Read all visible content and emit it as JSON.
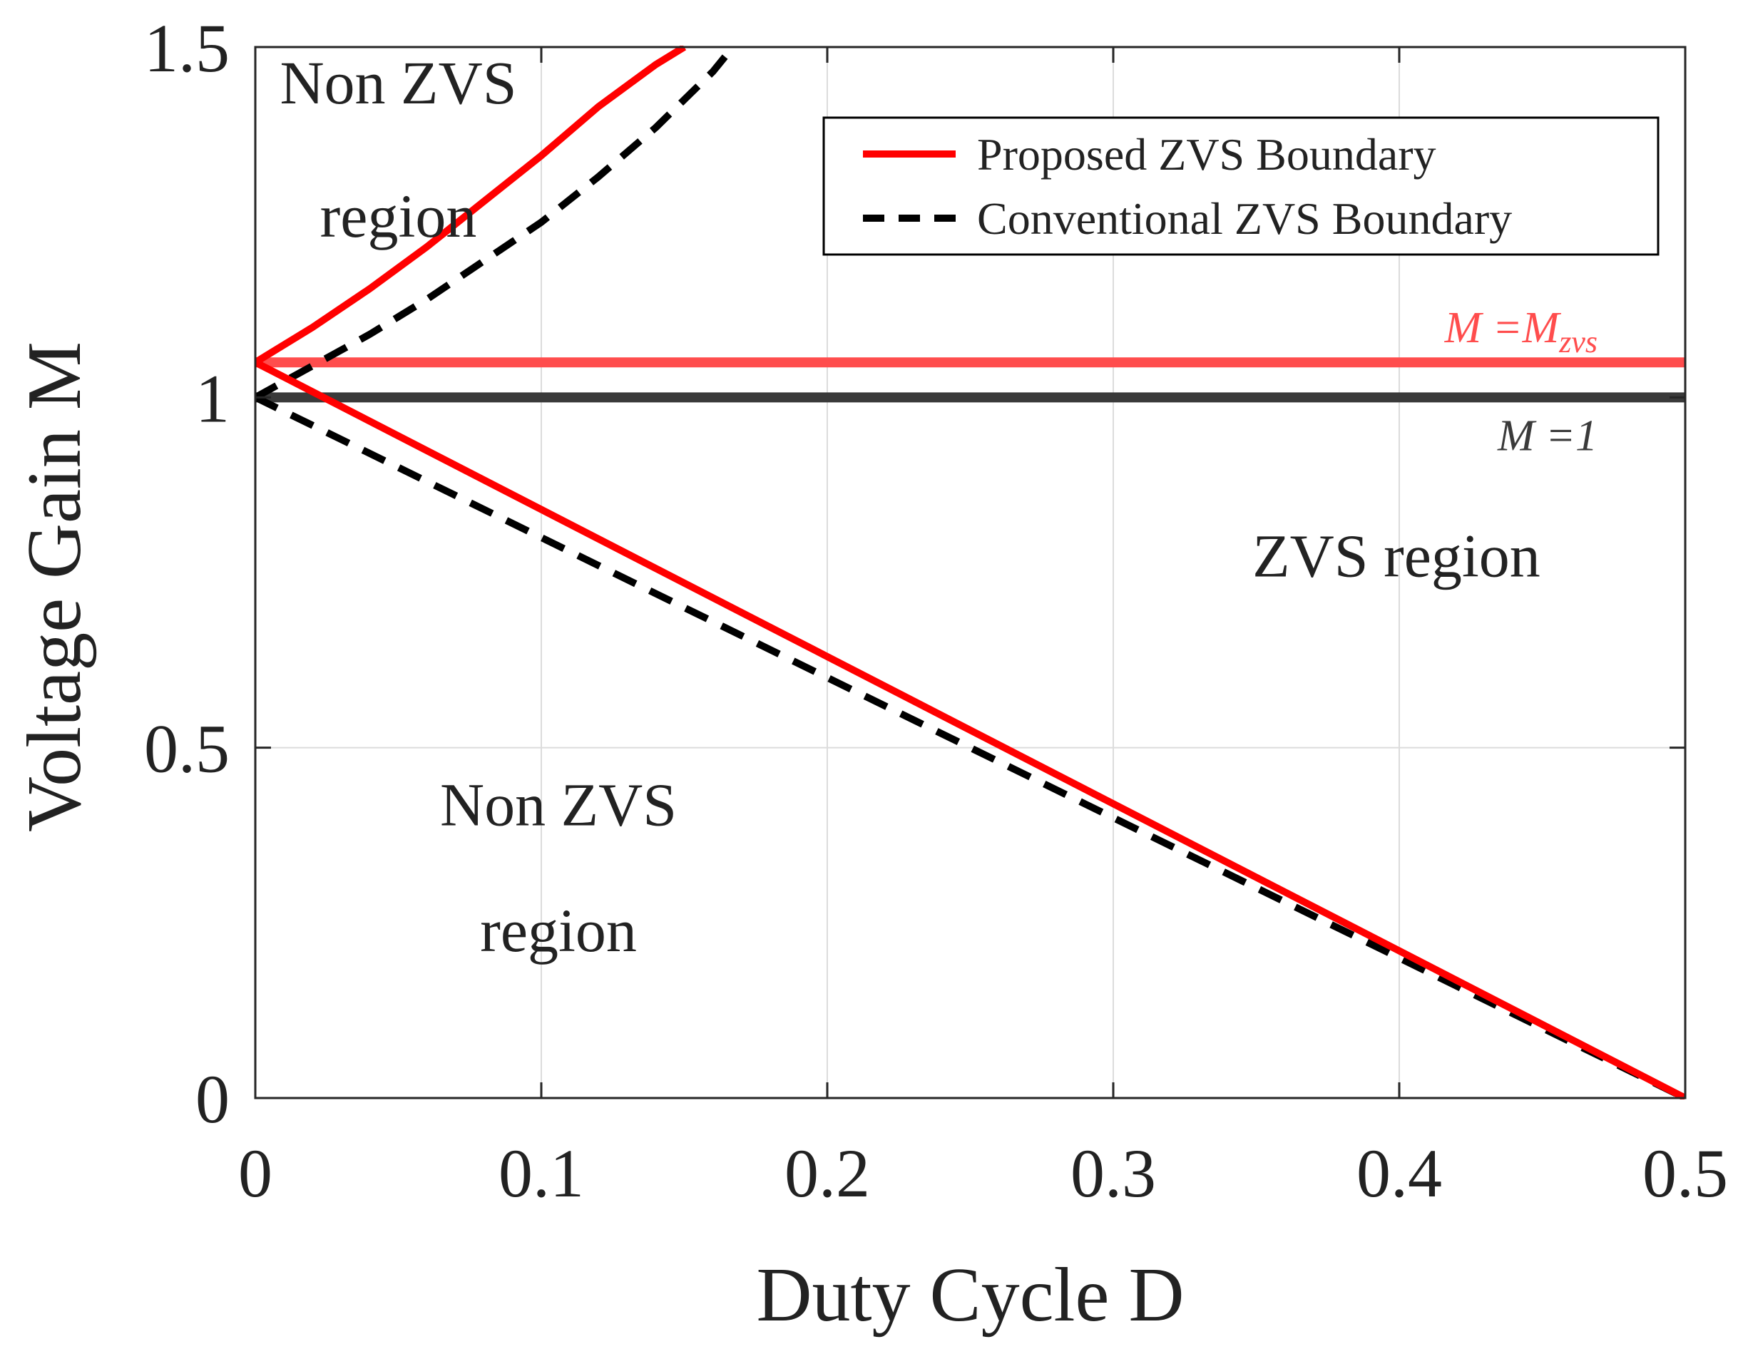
{
  "chart_data": {
    "type": "line",
    "title": "",
    "xlabel": "Duty Cycle D",
    "ylabel": "Voltage Gain M",
    "xlim": [
      0,
      0.5
    ],
    "ylim": [
      0,
      1.5
    ],
    "xticks": [
      0,
      0.1,
      0.2,
      0.3,
      0.4,
      0.5
    ],
    "xtick_labels": [
      "0",
      "0.1",
      "0.2",
      "0.3",
      "0.4",
      "0.5"
    ],
    "yticks": [
      0,
      0.5,
      1,
      1.5
    ],
    "ytick_labels": [
      "0",
      "0.5",
      "1",
      "1.5"
    ],
    "grid": true,
    "legend_position": "top-right",
    "series": [
      {
        "name": "Proposed ZVS Boundary",
        "style": "solid",
        "color": "#ff0000",
        "branches": [
          {
            "x": [
              0,
              0.02,
              0.04,
              0.06,
              0.08,
              0.1,
              0.12,
              0.14,
              0.15
            ],
            "y": [
              1.05,
              1.1,
              1.155,
              1.215,
              1.28,
              1.345,
              1.415,
              1.475,
              1.5
            ]
          },
          {
            "x": [
              0,
              0.1,
              0.2,
              0.3,
              0.4,
              0.5
            ],
            "y": [
              1.05,
              0.84,
              0.63,
              0.42,
              0.21,
              0
            ]
          }
        ]
      },
      {
        "name": "Conventional  ZVS Boundary",
        "style": "dashed",
        "color": "#000000",
        "branches": [
          {
            "x": [
              0,
              0.02,
              0.04,
              0.06,
              0.08,
              0.1,
              0.12,
              0.14,
              0.16,
              0.167
            ],
            "y": [
              1.0,
              1.045,
              1.09,
              1.14,
              1.195,
              1.25,
              1.315,
              1.385,
              1.465,
              1.5
            ]
          },
          {
            "x": [
              0,
              0.1,
              0.2,
              0.3,
              0.4,
              0.5
            ],
            "y": [
              1.0,
              0.8,
              0.6,
              0.4,
              0.2,
              0
            ]
          }
        ]
      }
    ],
    "reference_lines": [
      {
        "label_main": "M =M",
        "label_sub": "zvs",
        "y": 1.05,
        "color": "#ff4d4d"
      },
      {
        "label_main": "M =1",
        "label_sub": "",
        "y": 1.0,
        "color": "#3a3a3a"
      }
    ],
    "annotations": [
      {
        "lines": [
          "Non ZVS",
          "region"
        ],
        "x": 0.05,
        "y": [
          1.45,
          1.26
        ]
      },
      {
        "lines": [
          "Non ZVS",
          "region"
        ],
        "x": 0.106,
        "y": [
          0.42,
          0.24
        ]
      },
      {
        "lines": [
          "ZVS region"
        ],
        "x": 0.399,
        "y": [
          0.775
        ]
      }
    ]
  }
}
